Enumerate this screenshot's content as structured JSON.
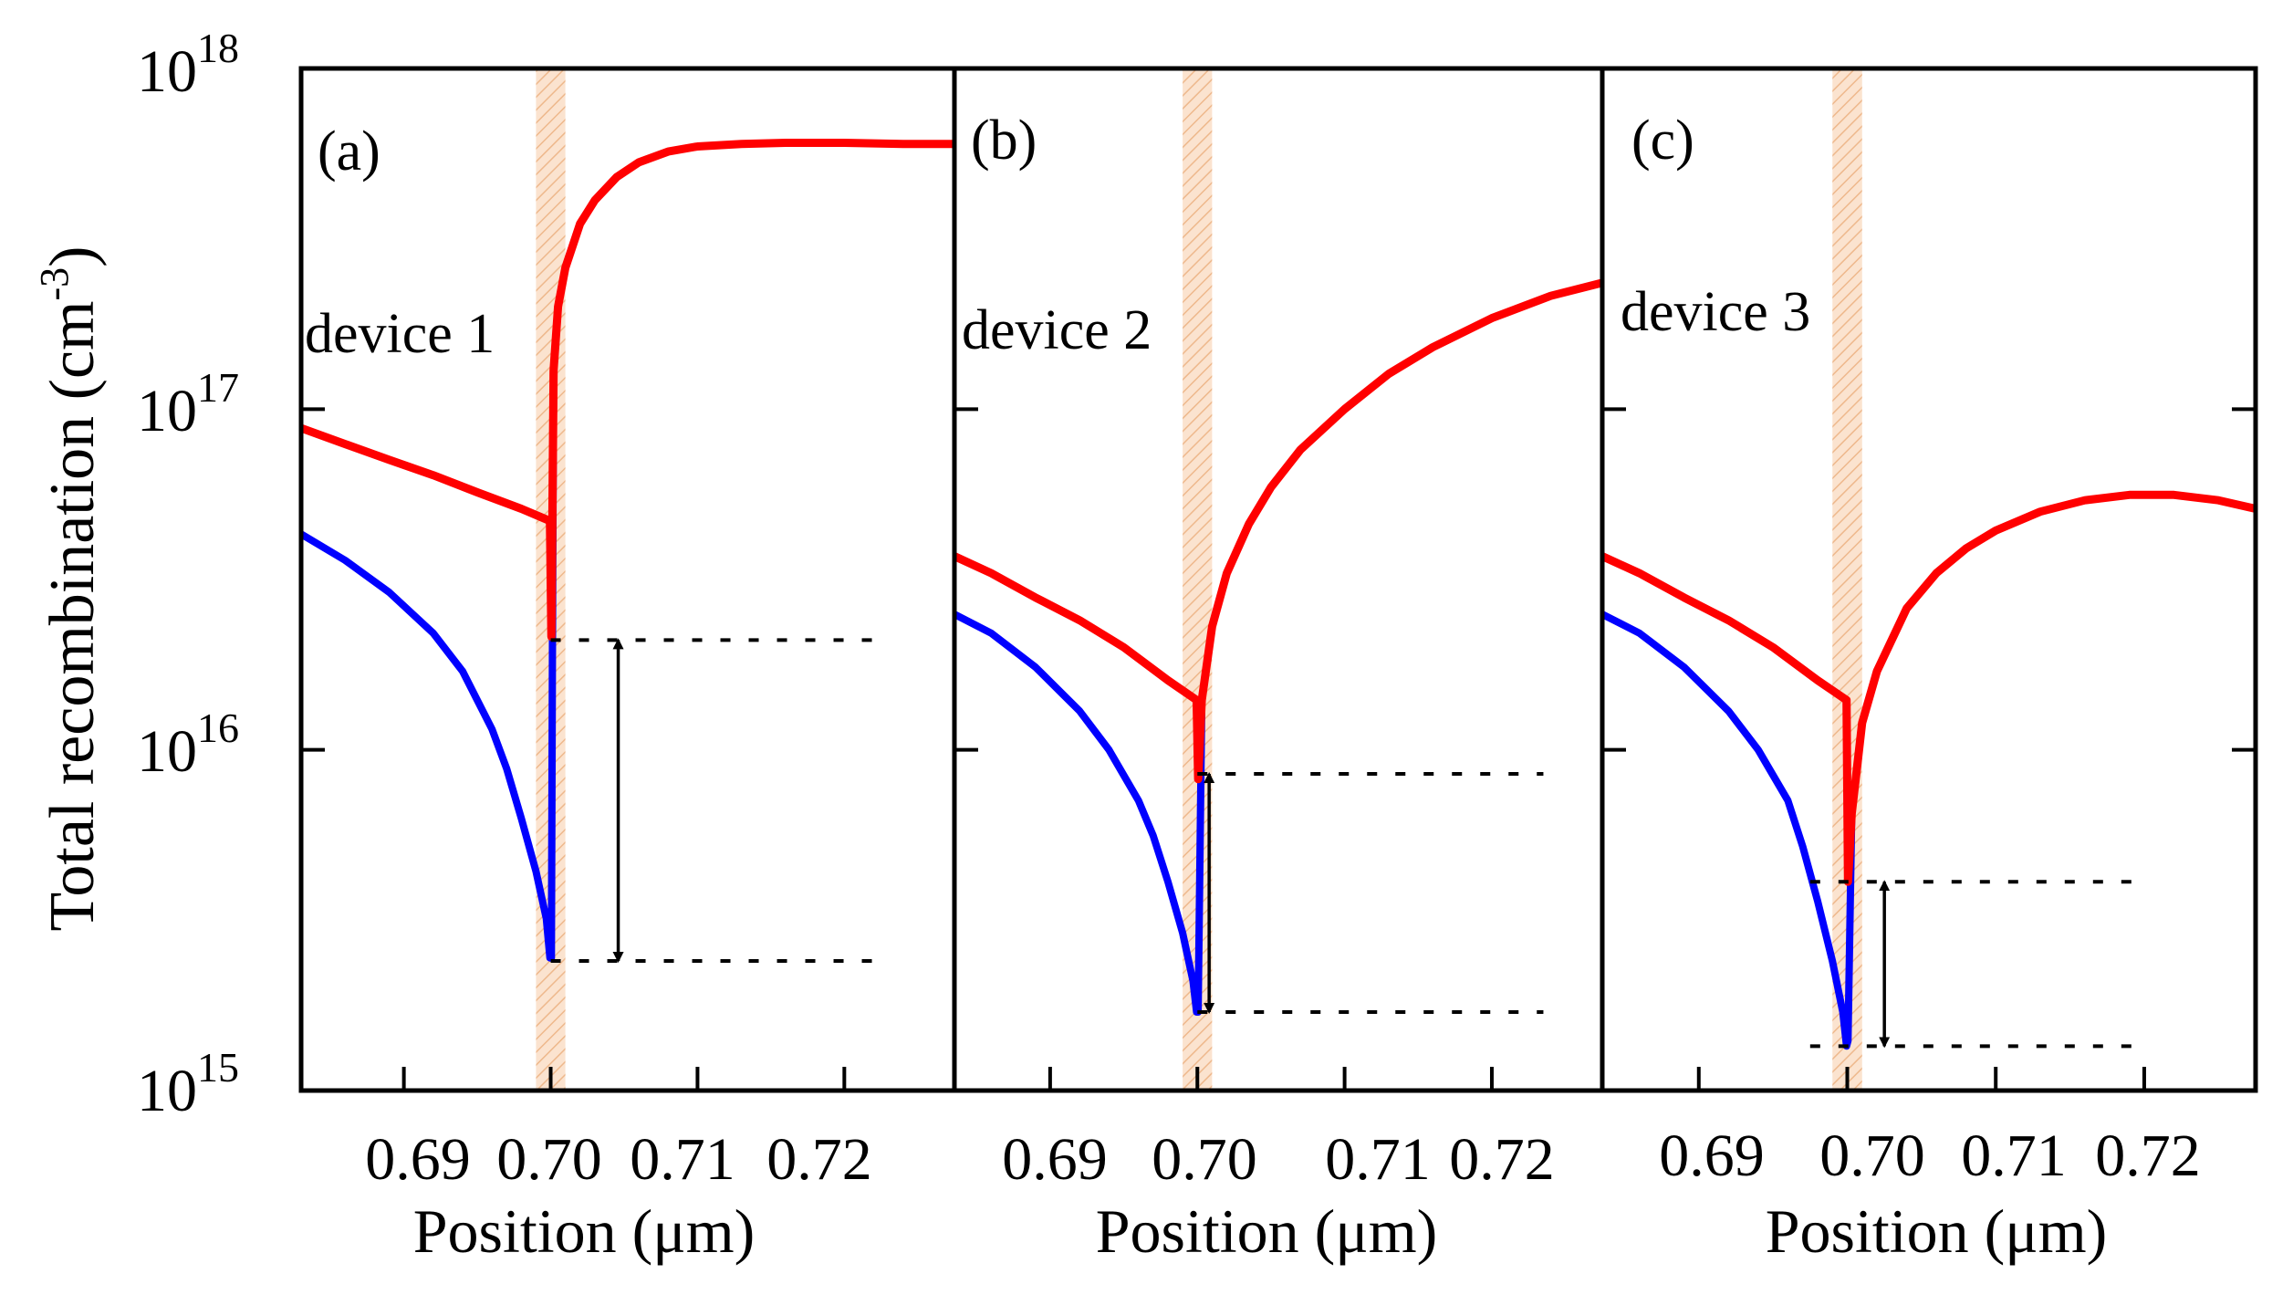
{
  "figure": {
    "ylabel": "Total recombination (cm",
    "ylabel_exp": "-3",
    "ylabel_close": ")",
    "y_ticks": [
      {
        "base": "10",
        "exp": "15",
        "value": 1000000000000000.0
      },
      {
        "base": "10",
        "exp": "16",
        "value": 1e+16
      },
      {
        "base": "10",
        "exp": "17",
        "value": 1e+17
      },
      {
        "base": "10",
        "exp": "18",
        "value": 1e+18
      }
    ],
    "colors": {
      "total": "#ff0000",
      "other": "#0000ff",
      "interface_band": "#f6c9a4",
      "axis": "#000000"
    }
  },
  "chart_data": [
    {
      "type": "line",
      "panel": "(a)",
      "device": "device 1",
      "xlabel": "Position (μm)",
      "xlim": [
        0.683,
        0.7275
      ],
      "ylim": [
        1000000000000000.0,
        1e+18
      ],
      "yscale": "log",
      "x_ticks": [
        {
          "value": 0.69,
          "label": "0.69"
        },
        {
          "value": 0.7,
          "label": "0.70"
        },
        {
          "value": 0.71,
          "label": "0.71"
        },
        {
          "value": 0.72,
          "label": "0.72"
        }
      ],
      "interface_band": [
        0.699,
        0.701
      ],
      "series": [
        {
          "name": "red",
          "color": "#ff0000",
          "points": [
            [
              0.683,
              8.8e+16
            ],
            [
              0.686,
              7.9e+16
            ],
            [
              0.689,
              7.1e+16
            ],
            [
              0.692,
              6.4e+16
            ],
            [
              0.695,
              5.7e+16
            ],
            [
              0.698,
              5.1e+16
            ],
            [
              0.69995,
              4.7e+16
            ],
            [
              0.70005,
              2.15e+16
            ],
            [
              0.7002,
              1.3e+17
            ],
            [
              0.7005,
              2e+17
            ],
            [
              0.701,
              2.6e+17
            ],
            [
              0.702,
              3.5e+17
            ],
            [
              0.703,
              4.1e+17
            ],
            [
              0.7045,
              4.8e+17
            ],
            [
              0.706,
              5.3e+17
            ],
            [
              0.708,
              5.7e+17
            ],
            [
              0.71,
              5.9e+17
            ],
            [
              0.713,
              6e+17
            ],
            [
              0.716,
              6.05e+17
            ],
            [
              0.72,
              6.05e+17
            ],
            [
              0.724,
              6e+17
            ],
            [
              0.7275,
              6e+17
            ]
          ]
        },
        {
          "name": "blue",
          "color": "#0000ff",
          "points": [
            [
              0.683,
              4.3e+16
            ],
            [
              0.686,
              3.6e+16
            ],
            [
              0.689,
              2.9e+16
            ],
            [
              0.692,
              2.2e+16
            ],
            [
              0.694,
              1.7e+16
            ],
            [
              0.696,
              1.15e+16
            ],
            [
              0.697,
              8800000000000000.0
            ],
            [
              0.698,
              6300000000000000.0
            ],
            [
              0.699,
              4400000000000000.0
            ],
            [
              0.6997,
              3200000000000000.0
            ],
            [
              0.69995,
              2450000000000000.0
            ],
            [
              0.70005,
              2450000000000000.0
            ],
            [
              0.70012,
              2.15e+16
            ],
            [
              0.7002,
              1.3e+17
            ],
            [
              0.7005,
              2e+17
            ],
            [
              0.701,
              2.6e+17
            ],
            [
              0.702,
              3.5e+17
            ],
            [
              0.703,
              4.1e+17
            ],
            [
              0.7045,
              4.8e+17
            ],
            [
              0.706,
              5.3e+17
            ],
            [
              0.708,
              5.7e+17
            ],
            [
              0.71,
              5.9e+17
            ],
            [
              0.713,
              6e+17
            ],
            [
              0.716,
              6.05e+17
            ],
            [
              0.72,
              6.05e+17
            ],
            [
              0.724,
              6e+17
            ],
            [
              0.7275,
              6e+17
            ]
          ]
        }
      ],
      "reference_lines": [
        {
          "y": 2.1e+16,
          "x_range": [
            0.7,
            0.7222
          ]
        },
        {
          "y": 2400000000000000.0,
          "x_range": [
            0.7,
            0.7222
          ]
        }
      ],
      "arrow": {
        "x": 0.7046,
        "y_range": [
          2400000000000000.0,
          2.1e+16
        ]
      }
    },
    {
      "type": "line",
      "panel": "(b)",
      "device": "device 2",
      "xlabel": "Position (μm)",
      "xlim": [
        0.6835,
        0.7275
      ],
      "ylim": [
        1000000000000000.0,
        1e+18
      ],
      "yscale": "log",
      "x_ticks": [
        {
          "value": 0.69,
          "label": "0.69"
        },
        {
          "value": 0.7,
          "label": "0.70"
        },
        {
          "value": 0.71,
          "label": "0.71"
        },
        {
          "value": 0.72,
          "label": "0.72"
        }
      ],
      "interface_band": [
        0.699,
        0.701
      ],
      "series": [
        {
          "name": "red",
          "color": "#ff0000",
          "points": [
            [
              0.6835,
              3.7e+16
            ],
            [
              0.686,
              3.3e+16
            ],
            [
              0.689,
              2.8e+16
            ],
            [
              0.692,
              2.4e+16
            ],
            [
              0.695,
              2e+16
            ],
            [
              0.698,
              1.6e+16
            ],
            [
              0.69995,
              1.4e+16
            ],
            [
              0.70005,
              8200000000000000.0
            ],
            [
              0.7003,
              1.4e+16
            ],
            [
              0.701,
              2.3e+16
            ],
            [
              0.702,
              3.3e+16
            ],
            [
              0.7035,
              4.6e+16
            ],
            [
              0.705,
              5.9e+16
            ],
            [
              0.707,
              7.6e+16
            ],
            [
              0.71,
              1e+17
            ],
            [
              0.713,
              1.27e+17
            ],
            [
              0.716,
              1.52e+17
            ],
            [
              0.72,
              1.85e+17
            ],
            [
              0.724,
              2.15e+17
            ],
            [
              0.7275,
              2.35e+17
            ]
          ]
        },
        {
          "name": "blue",
          "color": "#0000ff",
          "points": [
            [
              0.6835,
              2.5e+16
            ],
            [
              0.686,
              2.2e+16
            ],
            [
              0.689,
              1.75e+16
            ],
            [
              0.692,
              1.3e+16
            ],
            [
              0.694,
              1e+16
            ],
            [
              0.696,
              7100000000000000.0
            ],
            [
              0.697,
              5600000000000000.0
            ],
            [
              0.698,
              4100000000000000.0
            ],
            [
              0.699,
              2900000000000000.0
            ],
            [
              0.6997,
              2100000000000000.0
            ],
            [
              0.69995,
              1700000000000000.0
            ],
            [
              0.70005,
              1700000000000000.0
            ],
            [
              0.7003,
              1.4e+16
            ],
            [
              0.701,
              2.3e+16
            ],
            [
              0.702,
              3.3e+16
            ],
            [
              0.7035,
              4.6e+16
            ],
            [
              0.705,
              5.9e+16
            ],
            [
              0.707,
              7.6e+16
            ],
            [
              0.71,
              1e+17
            ],
            [
              0.713,
              1.27e+17
            ],
            [
              0.716,
              1.52e+17
            ],
            [
              0.72,
              1.85e+17
            ],
            [
              0.724,
              2.15e+17
            ],
            [
              0.7275,
              2.35e+17
            ]
          ]
        }
      ],
      "reference_lines": [
        {
          "y": 8500000000000000.0,
          "x_range": [
            0.7,
            0.7235
          ]
        },
        {
          "y": 1700000000000000.0,
          "x_range": [
            0.7,
            0.7235
          ]
        }
      ],
      "arrow": {
        "x": 0.7008,
        "y_range": [
          1700000000000000.0,
          8500000000000000.0
        ]
      }
    },
    {
      "type": "line",
      "panel": "(c)",
      "device": "device 3",
      "xlabel": "Position (μm)",
      "xlim": [
        0.6835,
        0.7275
      ],
      "ylim": [
        1000000000000000.0,
        1e+18
      ],
      "yscale": "log",
      "x_ticks": [
        {
          "value": 0.69,
          "label": "0.69"
        },
        {
          "value": 0.7,
          "label": "0.70"
        },
        {
          "value": 0.71,
          "label": "0.71"
        },
        {
          "value": 0.72,
          "label": "0.72"
        }
      ],
      "interface_band": [
        0.699,
        0.701
      ],
      "series": [
        {
          "name": "red",
          "color": "#ff0000",
          "points": [
            [
              0.6835,
              3.7e+16
            ],
            [
              0.686,
              3.3e+16
            ],
            [
              0.689,
              2.8e+16
            ],
            [
              0.692,
              2.4e+16
            ],
            [
              0.695,
              2e+16
            ],
            [
              0.698,
              1.6e+16
            ],
            [
              0.69995,
              1.4e+16
            ],
            [
              0.70005,
              4100000000000000.0
            ],
            [
              0.7003,
              6500000000000000.0
            ],
            [
              0.701,
              1.2e+16
            ],
            [
              0.702,
              1.7e+16
            ],
            [
              0.704,
              2.6e+16
            ],
            [
              0.706,
              3.3e+16
            ],
            [
              0.708,
              3.9e+16
            ],
            [
              0.71,
              4.4e+16
            ],
            [
              0.713,
              5e+16
            ],
            [
              0.716,
              5.4e+16
            ],
            [
              0.719,
              5.6e+16
            ],
            [
              0.722,
              5.6e+16
            ],
            [
              0.725,
              5.4e+16
            ],
            [
              0.7275,
              5.1e+16
            ]
          ]
        },
        {
          "name": "blue",
          "color": "#0000ff",
          "points": [
            [
              0.6835,
              2.5e+16
            ],
            [
              0.686,
              2.2e+16
            ],
            [
              0.689,
              1.75e+16
            ],
            [
              0.692,
              1.3e+16
            ],
            [
              0.694,
              1e+16
            ],
            [
              0.696,
              7100000000000000.0
            ],
            [
              0.697,
              5200000000000000.0
            ],
            [
              0.698,
              3600000000000000.0
            ],
            [
              0.699,
              2400000000000000.0
            ],
            [
              0.6997,
              1700000000000000.0
            ],
            [
              0.69995,
              1350000000000000.0
            ],
            [
              0.70005,
              1400000000000000.0
            ],
            [
              0.7003,
              6500000000000000.0
            ],
            [
              0.701,
              1.2e+16
            ],
            [
              0.702,
              1.7e+16
            ],
            [
              0.704,
              2.6e+16
            ],
            [
              0.706,
              3.3e+16
            ],
            [
              0.708,
              3.9e+16
            ],
            [
              0.71,
              4.4e+16
            ],
            [
              0.713,
              5e+16
            ],
            [
              0.716,
              5.4e+16
            ],
            [
              0.719,
              5.6e+16
            ],
            [
              0.722,
              5.6e+16
            ],
            [
              0.725,
              5.4e+16
            ],
            [
              0.7275,
              5.1e+16
            ]
          ]
        }
      ],
      "reference_lines": [
        {
          "y": 4100000000000000.0,
          "x_range": [
            0.6975,
            0.7195
          ]
        },
        {
          "y": 1350000000000000.0,
          "x_range": [
            0.6975,
            0.7195
          ]
        }
      ],
      "arrow": {
        "x": 0.7025,
        "y_range": [
          1350000000000000.0,
          4100000000000000.0
        ]
      }
    }
  ]
}
